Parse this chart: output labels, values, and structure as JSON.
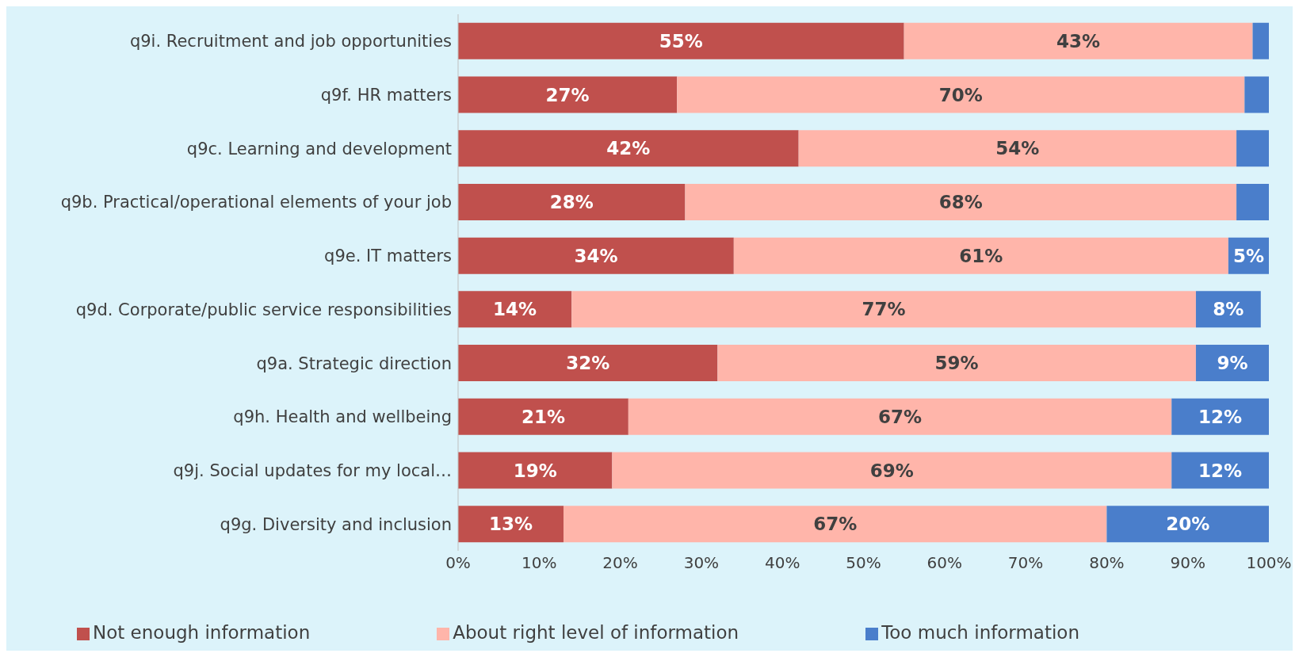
{
  "chart_data": {
    "type": "bar",
    "orientation": "horizontal",
    "stacked": true,
    "categories": [
      "q9i. Recruitment and job opportunities",
      "q9f. HR matters",
      "q9c. Learning and development",
      "q9b. Practical/operational elements of your job",
      "q9e. IT matters",
      "q9d. Corporate/public service responsibilities",
      "q9a. Strategic direction",
      "q9h. Health and wellbeing",
      "q9j. Social updates for my local…",
      "q9g. Diversity and inclusion"
    ],
    "series": [
      {
        "name": "Not enough information",
        "color": "#c0504d",
        "values": [
          55,
          27,
          42,
          28,
          34,
          14,
          32,
          21,
          19,
          13
        ],
        "value_labels": [
          "55%",
          "27%",
          "42%",
          "28%",
          "34%",
          "14%",
          "32%",
          "21%",
          "19%",
          "13%"
        ]
      },
      {
        "name": "About right level of information",
        "color": "#ffb5aa",
        "values": [
          43,
          70,
          54,
          68,
          61,
          77,
          59,
          67,
          69,
          67
        ],
        "value_labels": [
          "43%",
          "70%",
          "54%",
          "68%",
          "61%",
          "77%",
          "59%",
          "67%",
          "69%",
          "67%"
        ]
      },
      {
        "name": "Too much information",
        "color": "#4a7ecb",
        "values": [
          2,
          3,
          4,
          4,
          5,
          8,
          9,
          12,
          12,
          20
        ],
        "value_labels": [
          null,
          null,
          null,
          null,
          "5%",
          "8%",
          "9%",
          "12%",
          "12%",
          "20%"
        ]
      }
    ],
    "xlim": [
      0,
      100
    ],
    "xticks": [
      {
        "value": 0,
        "label": "0%"
      },
      {
        "value": 10,
        "label": "10%"
      },
      {
        "value": 20,
        "label": "20%"
      },
      {
        "value": 30,
        "label": "30%"
      },
      {
        "value": 40,
        "label": "40%"
      },
      {
        "value": 50,
        "label": "50%"
      },
      {
        "value": 60,
        "label": "60%"
      },
      {
        "value": 70,
        "label": "70%"
      },
      {
        "value": 80,
        "label": "80%"
      },
      {
        "value": 90,
        "label": "90%"
      },
      {
        "value": 100,
        "label": "100%"
      }
    ],
    "grid": false,
    "legend": "bottom"
  }
}
